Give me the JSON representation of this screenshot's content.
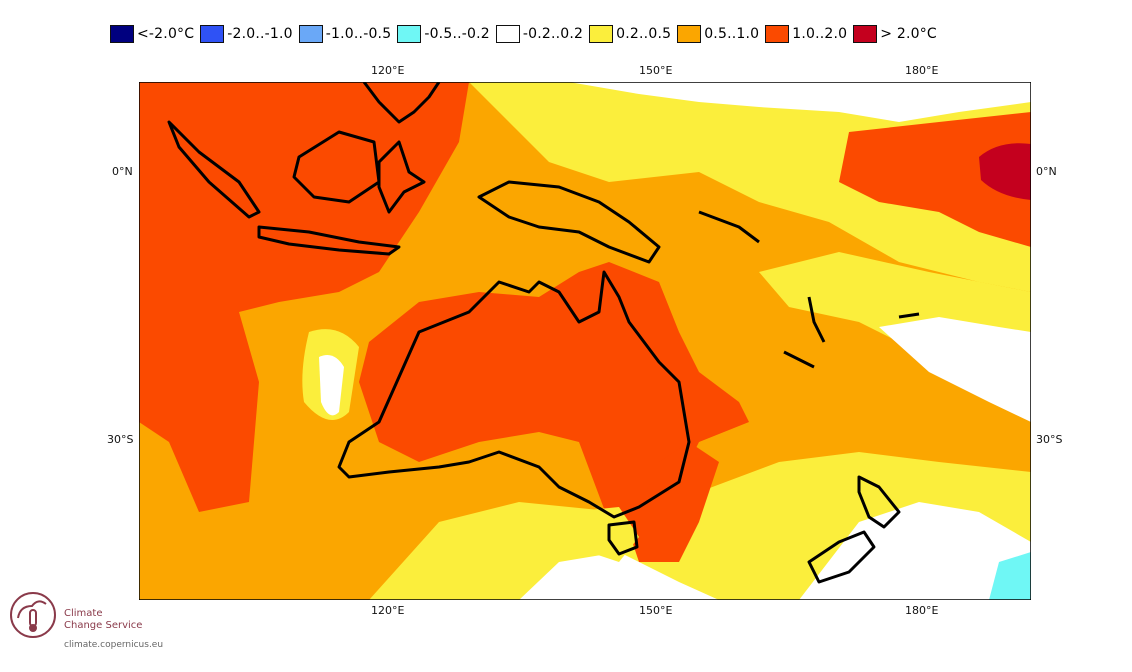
{
  "legend": {
    "items": [
      {
        "label": "<-2.0°C",
        "color": "#00007f"
      },
      {
        "label": "-2.0..-1.0",
        "color": "#2f52f5"
      },
      {
        "label": "-1.0..-0.5",
        "color": "#6aa8f7"
      },
      {
        "label": "-0.5..-0.2",
        "color": "#6ff7f5"
      },
      {
        "label": "-0.2..0.2",
        "color": "#ffffff"
      },
      {
        "label": "0.2..0.5",
        "color": "#fbee3c"
      },
      {
        "label": "0.5..1.0",
        "color": "#fba600"
      },
      {
        "label": "1.0..2.0",
        "color": "#fb4a00"
      },
      {
        "label": "> 2.0°C",
        "color": "#c4001e"
      }
    ]
  },
  "axes": {
    "top_lon": [
      "120°E",
      "150°E",
      "180°E"
    ],
    "bottom_lon": [
      "120°E",
      "150°E",
      "180°E"
    ],
    "left_lat": [
      "0°N",
      "30°S"
    ],
    "right_lat": [
      "0°N",
      "30°S"
    ]
  },
  "logo": {
    "line1": "Climate",
    "line2": "Change Service",
    "url": "climate.copernicus.eu"
  },
  "map": {
    "projection_grid": {
      "lon_ticks": [
        "120°E",
        "150°E",
        "180°E"
      ],
      "lat_ticks": [
        "0°N",
        "30°S"
      ]
    },
    "colors": {
      "white": "#ffffff",
      "yellow": "#fbee3c",
      "orange": "#fba600",
      "red_orange": "#fb4a00",
      "dark_red": "#c4001e",
      "cyan": "#6ff7f5",
      "coast": "#000000"
    }
  }
}
